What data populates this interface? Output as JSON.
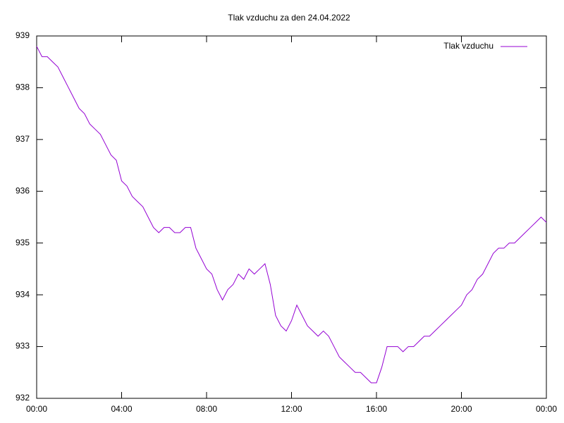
{
  "chart_data": {
    "type": "line",
    "title": "Tlak vzduchu za den 24.04.2022",
    "x": [
      0,
      0.25,
      0.5,
      0.75,
      1,
      1.25,
      1.5,
      1.75,
      2,
      2.25,
      2.5,
      2.75,
      3,
      3.25,
      3.5,
      3.75,
      4,
      4.25,
      4.5,
      4.75,
      5,
      5.25,
      5.5,
      5.75,
      6,
      6.25,
      6.5,
      6.75,
      7,
      7.25,
      7.5,
      7.75,
      8,
      8.25,
      8.5,
      8.75,
      9,
      9.25,
      9.5,
      9.75,
      10,
      10.25,
      10.5,
      10.75,
      11,
      11.25,
      11.5,
      11.75,
      12,
      12.25,
      12.5,
      12.75,
      13,
      13.25,
      13.5,
      13.75,
      14,
      14.25,
      14.5,
      14.75,
      15,
      15.25,
      15.5,
      15.75,
      16,
      16.25,
      16.5,
      16.75,
      17,
      17.25,
      17.5,
      17.75,
      18,
      18.25,
      18.5,
      18.75,
      19,
      19.25,
      19.5,
      19.75,
      20,
      20.25,
      20.5,
      20.75,
      21,
      21.25,
      21.5,
      21.75,
      22,
      22.25,
      22.5,
      22.75,
      23,
      23.25,
      23.5,
      23.75,
      24
    ],
    "series": [
      {
        "name": "Tlak vzduchu",
        "color": "#9400d3",
        "values": [
          938.8,
          938.6,
          938.6,
          938.5,
          938.4,
          938.2,
          938.0,
          937.8,
          937.6,
          937.5,
          937.3,
          937.2,
          937.1,
          936.9,
          936.7,
          936.6,
          936.2,
          936.1,
          935.9,
          935.8,
          935.7,
          935.5,
          935.3,
          935.2,
          935.3,
          935.3,
          935.2,
          935.2,
          935.3,
          935.3,
          934.9,
          934.7,
          934.5,
          934.4,
          934.1,
          933.9,
          934.1,
          934.2,
          934.4,
          934.3,
          934.5,
          934.4,
          934.5,
          934.6,
          934.2,
          933.6,
          933.4,
          933.3,
          933.5,
          933.8,
          933.6,
          933.4,
          933.3,
          933.2,
          933.3,
          933.2,
          933.0,
          932.8,
          932.7,
          932.6,
          932.5,
          932.5,
          932.4,
          932.3,
          932.3,
          932.6,
          933.0,
          933.0,
          933.0,
          932.9,
          933.0,
          933.0,
          933.1,
          933.2,
          933.2,
          933.3,
          933.4,
          933.5,
          933.6,
          933.7,
          933.8,
          934.0,
          934.1,
          934.3,
          934.4,
          934.6,
          934.8,
          934.9,
          934.9,
          935.0,
          935.0,
          935.1,
          935.2,
          935.3,
          935.4,
          935.5,
          935.4
        ]
      }
    ],
    "xlim": [
      0,
      24
    ],
    "xticks": [
      {
        "value": 0,
        "label": "00:00"
      },
      {
        "value": 4,
        "label": "04:00"
      },
      {
        "value": 8,
        "label": "08:00"
      },
      {
        "value": 12,
        "label": "12:00"
      },
      {
        "value": 16,
        "label": "16:00"
      },
      {
        "value": 20,
        "label": "20:00"
      },
      {
        "value": 24,
        "label": "00:00"
      }
    ],
    "ylim": [
      932,
      939
    ],
    "yticks": [
      932,
      933,
      934,
      935,
      936,
      937,
      938,
      939
    ],
    "grid": false,
    "legend": "top-right"
  }
}
